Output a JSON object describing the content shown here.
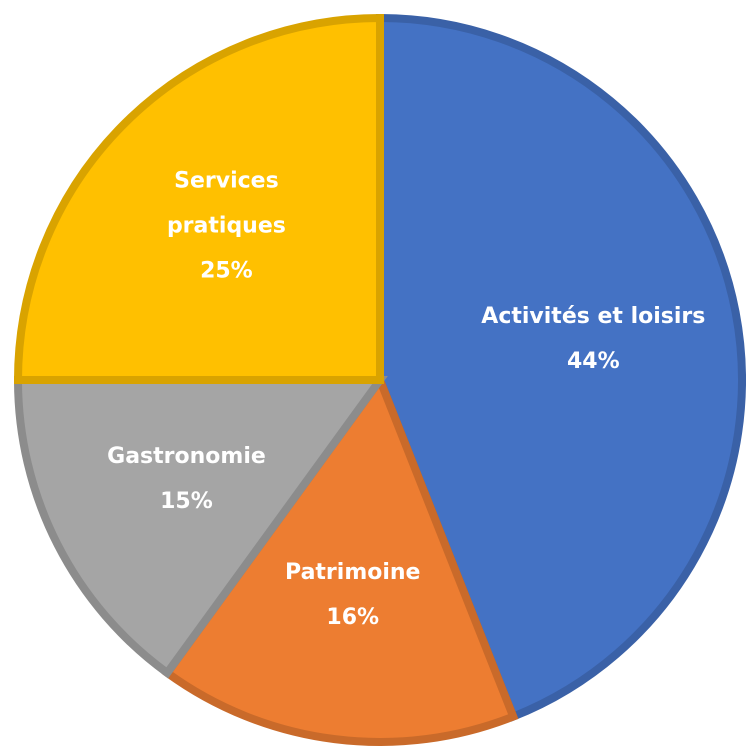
{
  "chart_data": {
    "type": "pie",
    "categories": [
      "Activités et loisirs",
      "Patrimoine",
      "Gastronomie",
      "Services pratiques"
    ],
    "values": [
      44,
      16,
      15,
      25
    ],
    "value_labels": [
      "44%",
      "16%",
      "15%",
      "25%"
    ],
    "colors": [
      "#4472c4",
      "#ed7d31",
      "#a5a5a5",
      "#ffc000"
    ]
  }
}
